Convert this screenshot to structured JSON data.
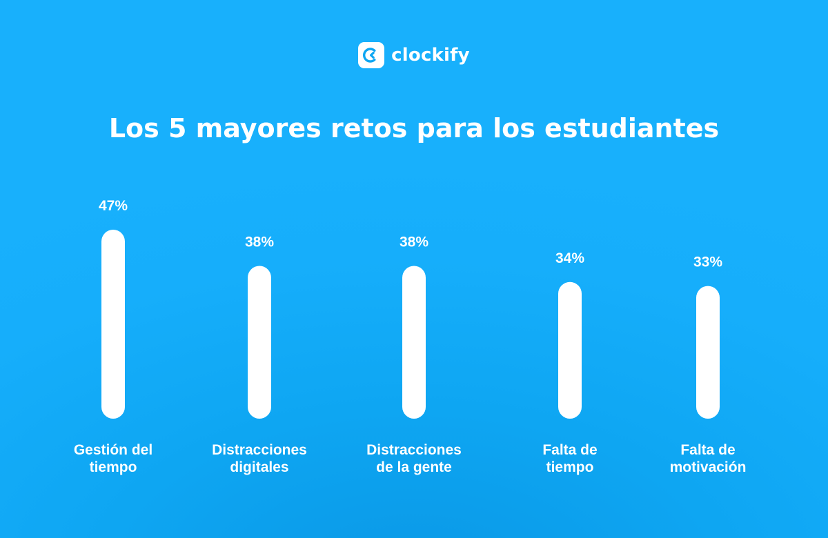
{
  "brand": {
    "name": "clockify",
    "logo_icon": "clockify-logo-icon",
    "logo_bg": "#ffffff",
    "logo_fg": "#0ea6f2"
  },
  "colors": {
    "background": "#16aefb",
    "bar": "#ffffff",
    "text": "#ffffff"
  },
  "chart_data": {
    "type": "bar",
    "title": "Los 5 mayores retos para los estudiantes",
    "categories": [
      [
        "Gestión del",
        "tiempo"
      ],
      [
        "Distracciones",
        "digitales"
      ],
      [
        "Distracciones",
        "de la gente"
      ],
      [
        "Falta de",
        "tiempo"
      ],
      [
        "Falta de",
        "motivación"
      ]
    ],
    "values": [
      47,
      38,
      38,
      34,
      33
    ],
    "value_labels": [
      "47%",
      "38%",
      "38%",
      "34%",
      "33%"
    ],
    "unit": "%",
    "xlabel": "",
    "ylabel": "",
    "ylim": [
      0,
      47
    ],
    "grid": false,
    "legend": "none"
  }
}
